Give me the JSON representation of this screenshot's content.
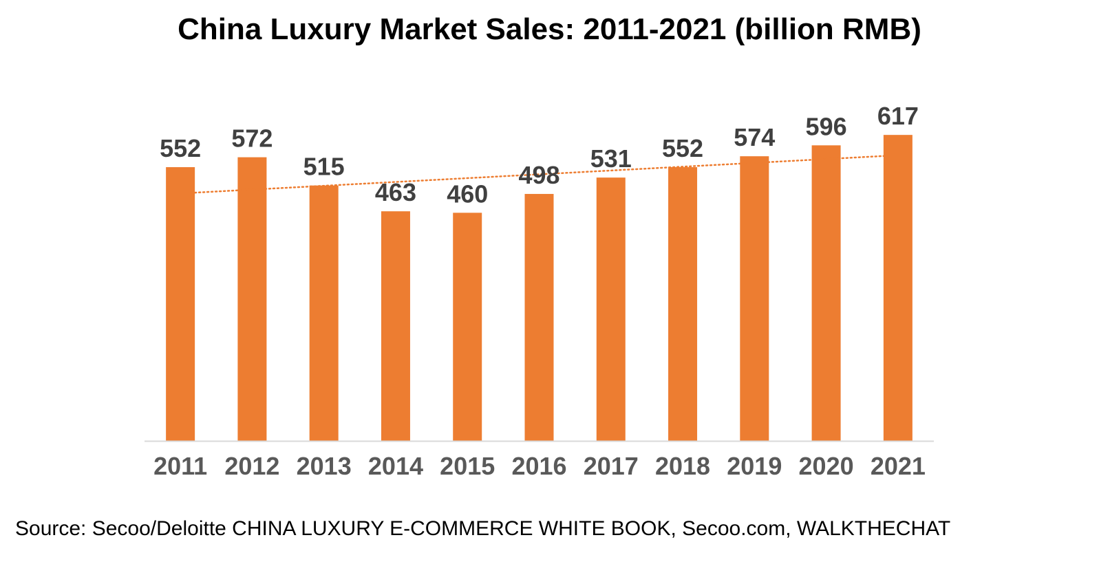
{
  "chart_data": {
    "type": "bar",
    "title": "China Luxury Market Sales: 2011-2021 (billion RMB)",
    "categories": [
      "2011",
      "2012",
      "2013",
      "2014",
      "2015",
      "2016",
      "2017",
      "2018",
      "2019",
      "2020",
      "2021"
    ],
    "values": [
      552,
      572,
      515,
      463,
      460,
      498,
      531,
      552,
      574,
      596,
      617
    ],
    "data_labels": [
      "552",
      "572",
      "515",
      "463",
      "460",
      "498",
      "531",
      "552",
      "574",
      "596",
      "617"
    ],
    "xlabel": "",
    "ylabel": "",
    "ylim": [
      0,
      620
    ],
    "grid": false,
    "legend": "none",
    "trendline": {
      "type": "linear",
      "style": "dotted",
      "range": [
        "2011",
        "2020"
      ]
    },
    "colors": {
      "bar": "#ED7D31",
      "trendline": "#ED7D31",
      "axis": "#D9D9D9"
    },
    "source": "Source: Secoo/Deloitte  CHINA LUXURY E-COMMERCE WHITE BOOK, Secoo.com,  WALKTHECHAT"
  }
}
